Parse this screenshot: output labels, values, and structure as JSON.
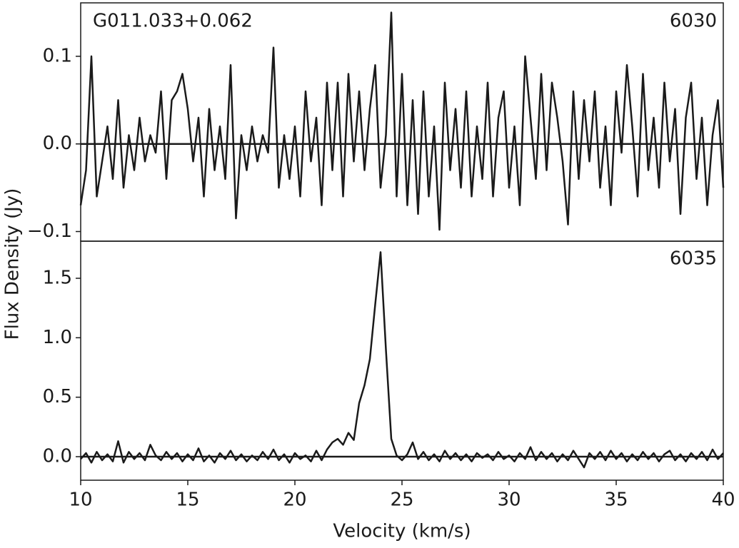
{
  "chart_data": [
    {
      "type": "line",
      "label": "G011.033+0.062",
      "panel_label": "6030",
      "ylabel": "Flux Density (Jy)",
      "color": "#1a1a1a",
      "xlim": [
        10,
        40
      ],
      "ylim": [
        -0.111,
        0.161
      ],
      "yticks": [
        {
          "value": -0.1,
          "label": "−0.1"
        },
        {
          "value": 0,
          "label": "0.0"
        },
        0.1
      ],
      "hline": 0,
      "x": [
        10,
        10.25,
        10.5,
        10.75,
        11,
        11.25,
        11.5,
        11.75,
        12,
        12.25,
        12.5,
        12.75,
        13,
        13.25,
        13.5,
        13.75,
        14,
        14.25,
        14.5,
        14.75,
        15,
        15.25,
        15.5,
        15.75,
        16,
        16.25,
        16.5,
        16.75,
        17,
        17.25,
        17.5,
        17.75,
        18,
        18.25,
        18.5,
        18.75,
        19,
        19.25,
        19.5,
        19.75,
        20,
        20.25,
        20.5,
        20.75,
        21,
        21.25,
        21.5,
        21.75,
        22,
        22.25,
        22.5,
        22.75,
        23,
        23.25,
        23.5,
        23.75,
        24,
        24.25,
        24.5,
        24.75,
        25,
        25.25,
        25.5,
        25.75,
        26,
        26.25,
        26.5,
        26.75,
        27,
        27.25,
        27.5,
        27.75,
        28,
        28.25,
        28.5,
        28.75,
        29,
        29.25,
        29.5,
        29.75,
        30,
        30.25,
        30.5,
        30.75,
        31,
        31.25,
        31.5,
        31.75,
        32,
        32.25,
        32.5,
        32.75,
        33,
        33.25,
        33.5,
        33.75,
        34,
        34.25,
        34.5,
        34.75,
        35,
        35.25,
        35.5,
        35.75,
        36,
        36.25,
        36.5,
        36.75,
        37,
        37.25,
        37.5,
        37.75,
        38,
        38.25,
        38.5,
        38.75,
        39,
        39.25,
        39.5,
        39.75,
        40
      ],
      "values": [
        -0.07,
        -0.03,
        0.1,
        -0.06,
        -0.02,
        0.02,
        -0.04,
        0.05,
        -0.05,
        0.01,
        -0.03,
        0.03,
        -0.02,
        0.01,
        -0.01,
        0.06,
        -0.04,
        0.05,
        0.06,
        0.08,
        0.04,
        -0.02,
        0.03,
        -0.06,
        0.04,
        -0.03,
        0.02,
        -0.04,
        0.09,
        -0.085,
        0.01,
        -0.03,
        0.02,
        -0.02,
        0.01,
        -0.01,
        0.11,
        -0.05,
        0.01,
        -0.04,
        0.02,
        -0.06,
        0.06,
        -0.02,
        0.03,
        -0.07,
        0.07,
        -0.03,
        0.07,
        -0.06,
        0.08,
        -0.02,
        0.06,
        -0.03,
        0.04,
        0.09,
        -0.05,
        0.01,
        0.15,
        -0.06,
        0.08,
        -0.07,
        0.05,
        -0.08,
        0.06,
        -0.06,
        0.02,
        -0.098,
        0.07,
        -0.03,
        0.04,
        -0.05,
        0.06,
        -0.06,
        0.02,
        -0.04,
        0.07,
        -0.06,
        0.03,
        0.06,
        -0.05,
        0.02,
        -0.07,
        0.1,
        0.03,
        -0.04,
        0.08,
        -0.03,
        0.07,
        0.03,
        -0.02,
        -0.092,
        0.06,
        -0.04,
        0.05,
        -0.02,
        0.06,
        -0.05,
        0.02,
        -0.07,
        0.06,
        -0.01,
        0.09,
        0.02,
        -0.06,
        0.08,
        -0.03,
        0.03,
        -0.05,
        0.07,
        -0.02,
        0.04,
        -0.08,
        0.03,
        0.07,
        -0.04,
        0.03,
        -0.07,
        0.01,
        0.05,
        -0.05
      ]
    },
    {
      "type": "line",
      "panel_label": "6035",
      "xlabel": "Velocity (km/s)",
      "color": "#1a1a1a",
      "xlim": [
        10,
        40
      ],
      "ylim": [
        -0.198,
        1.812
      ],
      "xticks": [
        10,
        15,
        20,
        25,
        30,
        35,
        40
      ],
      "yticks": [
        {
          "value": 0,
          "label": "0.0"
        },
        0.5,
        {
          "value": 1,
          "label": "1.0"
        },
        1.5
      ],
      "hline": 0,
      "x": [
        10,
        10.25,
        10.5,
        10.75,
        11,
        11.25,
        11.5,
        11.75,
        12,
        12.25,
        12.5,
        12.75,
        13,
        13.25,
        13.5,
        13.75,
        14,
        14.25,
        14.5,
        14.75,
        15,
        15.25,
        15.5,
        15.75,
        16,
        16.25,
        16.5,
        16.75,
        17,
        17.25,
        17.5,
        17.75,
        18,
        18.25,
        18.5,
        18.75,
        19,
        19.25,
        19.5,
        19.75,
        20,
        20.25,
        20.5,
        20.75,
        21,
        21.25,
        21.5,
        21.75,
        22,
        22.25,
        22.5,
        22.75,
        23,
        23.25,
        23.5,
        23.75,
        24,
        24.25,
        24.5,
        24.75,
        25,
        25.25,
        25.5,
        25.75,
        26,
        26.25,
        26.5,
        26.75,
        27,
        27.25,
        27.5,
        27.75,
        28,
        28.25,
        28.5,
        28.75,
        29,
        29.25,
        29.5,
        29.75,
        30,
        30.25,
        30.5,
        30.75,
        31,
        31.25,
        31.5,
        31.75,
        32,
        32.25,
        32.5,
        32.75,
        33,
        33.25,
        33.5,
        33.75,
        34,
        34.25,
        34.5,
        34.75,
        35,
        35.25,
        35.5,
        35.75,
        36,
        36.25,
        36.5,
        36.75,
        37,
        37.25,
        37.5,
        37.75,
        38,
        38.25,
        38.5,
        38.75,
        39,
        39.25,
        39.5,
        39.75,
        40
      ],
      "values": [
        -0.02,
        0.03,
        -0.05,
        0.04,
        -0.03,
        0.02,
        -0.04,
        0.13,
        -0.05,
        0.04,
        -0.02,
        0.03,
        -0.03,
        0.1,
        0.01,
        -0.03,
        0.04,
        -0.02,
        0.03,
        -0.04,
        0.02,
        -0.03,
        0.07,
        -0.04,
        0.01,
        -0.05,
        0.03,
        -0.02,
        0.05,
        -0.03,
        0.02,
        -0.04,
        0.01,
        -0.03,
        0.04,
        -0.02,
        0.06,
        -0.03,
        0.02,
        -0.05,
        0.03,
        -0.02,
        0.01,
        -0.04,
        0.05,
        -0.03,
        0.06,
        0.12,
        0.15,
        0.1,
        0.2,
        0.14,
        0.45,
        0.6,
        0.82,
        1.28,
        1.72,
        0.9,
        0.15,
        0.01,
        -0.03,
        0.02,
        0.12,
        -0.02,
        0.04,
        -0.03,
        0.02,
        -0.04,
        0.05,
        -0.02,
        0.03,
        -0.03,
        0.02,
        -0.04,
        0.03,
        -0.01,
        0.02,
        -0.03,
        0.04,
        -0.02,
        0.01,
        -0.04,
        0.03,
        -0.02,
        0.08,
        -0.03,
        0.04,
        -0.02,
        0.03,
        -0.04,
        0.02,
        -0.03,
        0.05,
        -0.02,
        -0.09,
        0.03,
        -0.02,
        0.04,
        -0.03,
        0.05,
        -0.02,
        0.03,
        -0.04,
        0.02,
        -0.03,
        0.04,
        -0.02,
        0.03,
        -0.04,
        0.02,
        0.05,
        -0.03,
        0.02,
        -0.04,
        0.03,
        -0.02,
        0.04,
        -0.03,
        0.06,
        -0.02,
        0.03
      ]
    }
  ]
}
